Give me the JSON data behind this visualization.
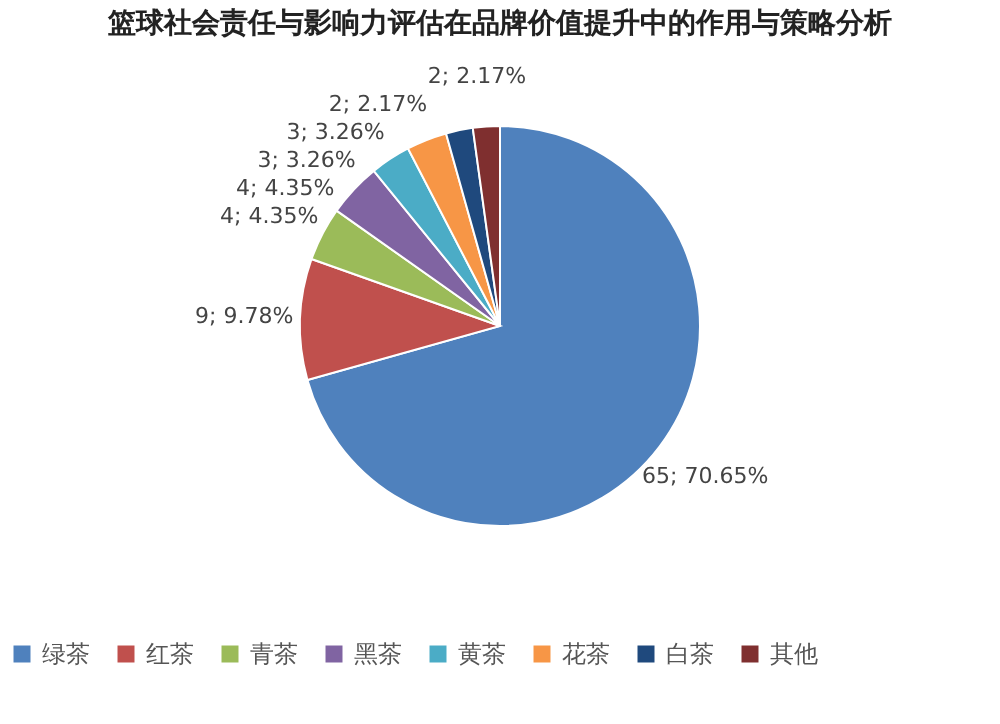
{
  "chart_data": {
    "type": "pie",
    "title": "篮球社会责任与影响力评估在品牌价值提升中的作用与策略分析",
    "categories": [
      "绿茶",
      "红茶",
      "青茶",
      "黑茶",
      "黄茶",
      "花茶",
      "白茶",
      "其他"
    ],
    "values": [
      65,
      9,
      4,
      4,
      3,
      3,
      2,
      2
    ],
    "value_labels": [
      "65; 70.65%",
      "9; 9.78%",
      "4; 4.35%",
      "4; 4.35%",
      "3; 3.26%",
      "3; 3.26%",
      "2; 2.17%",
      "2; 2.17%"
    ],
    "colors": [
      "#4f81bd",
      "#c0504d",
      "#9bbb59",
      "#8064a2",
      "#4bacc6",
      "#f79646",
      "#1f497d",
      "#7f2f2f"
    ],
    "legend": "bottom"
  }
}
